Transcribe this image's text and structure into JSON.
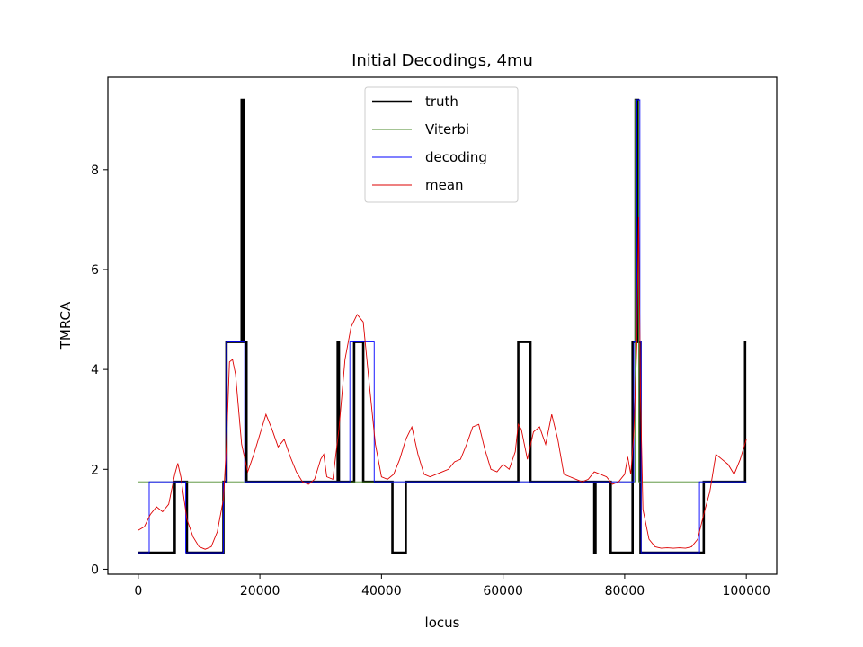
{
  "chart_data": {
    "type": "line",
    "title": "Initial Decodings, 4mu",
    "xlabel": "locus",
    "ylabel": "TMRCA",
    "xlim": [
      -5000,
      105000
    ],
    "ylim": [
      -0.1,
      9.85
    ],
    "xticks": [
      0,
      20000,
      40000,
      60000,
      80000,
      100000
    ],
    "yticks": [
      0,
      2,
      4,
      6,
      8
    ],
    "xtick_labels": [
      "0",
      "20000",
      "40000",
      "60000",
      "80000",
      "100000"
    ],
    "ytick_labels": [
      "0",
      "2",
      "4",
      "6",
      "8"
    ],
    "grid": false,
    "legend": {
      "position": "top-center"
    },
    "series": [
      {
        "name": "truth",
        "color": "#000000",
        "style": "step",
        "width": "thick",
        "x": [
          0,
          6000,
          6000,
          8000,
          8000,
          14000,
          14000,
          14500,
          14500,
          17000,
          17000,
          17300,
          17300,
          17800,
          17800,
          32800,
          32800,
          33000,
          33000,
          35500,
          35500,
          37000,
          37000,
          41800,
          41800,
          44000,
          44000,
          62500,
          62500,
          64500,
          64500,
          75000,
          75000,
          75200,
          75200,
          77700,
          77700,
          81300,
          81300,
          81800,
          81800,
          82200,
          82200,
          82600,
          82600,
          93000,
          93000,
          99800,
          99800,
          100000
        ],
        "y": [
          0.33,
          0.33,
          1.75,
          1.75,
          0.33,
          0.33,
          1.75,
          1.75,
          4.55,
          4.55,
          9.4,
          9.4,
          4.55,
          4.55,
          1.75,
          1.75,
          4.55,
          4.55,
          1.75,
          1.75,
          4.55,
          4.55,
          1.75,
          1.75,
          0.33,
          0.33,
          1.75,
          1.75,
          4.55,
          4.55,
          1.75,
          1.75,
          0.33,
          0.33,
          1.75,
          1.75,
          0.33,
          0.33,
          4.55,
          4.55,
          9.4,
          9.4,
          4.55,
          4.55,
          0.33,
          0.33,
          1.75,
          1.75,
          4.55,
          4.55
        ]
      },
      {
        "name": "Viterbi",
        "color": "#4a8a2a",
        "style": "line",
        "width": "thin",
        "x": [
          0,
          81700,
          81700,
          82300,
          82300,
          100000
        ],
        "y": [
          1.75,
          1.75,
          9.4,
          9.4,
          1.75,
          1.75
        ]
      },
      {
        "name": "decoding",
        "color": "#0000ff",
        "style": "step",
        "width": "thin",
        "x": [
          0,
          1800,
          1800,
          7800,
          7800,
          14000,
          14000,
          14500,
          14500,
          17500,
          17500,
          34800,
          34800,
          38800,
          38800,
          81500,
          81500,
          82000,
          82000,
          82500,
          82500,
          82700,
          82700,
          92300,
          92300,
          100000
        ],
        "y": [
          0.33,
          0.33,
          1.75,
          1.75,
          0.33,
          0.33,
          1.75,
          1.75,
          4.55,
          4.55,
          1.75,
          1.75,
          4.55,
          4.55,
          1.75,
          1.75,
          4.55,
          4.55,
          9.4,
          9.4,
          4.55,
          4.55,
          0.33,
          0.33,
          1.75,
          1.75
        ]
      },
      {
        "name": "mean",
        "color": "#dd0000",
        "style": "line",
        "width": "thin",
        "x": [
          0,
          1000,
          2000,
          3000,
          4000,
          5000,
          6000,
          6500,
          7000,
          8000,
          9000,
          10000,
          11000,
          12000,
          13000,
          14000,
          14500,
          15000,
          15500,
          16000,
          16500,
          17000,
          18000,
          19000,
          20000,
          21000,
          22000,
          23000,
          24000,
          25000,
          26000,
          27000,
          28000,
          29000,
          30000,
          30500,
          31000,
          32000,
          33000,
          34000,
          35000,
          36000,
          37000,
          38000,
          39000,
          40000,
          41000,
          42000,
          43000,
          44000,
          45000,
          46000,
          47000,
          48000,
          49000,
          50000,
          51000,
          52000,
          53000,
          54000,
          55000,
          56000,
          57000,
          58000,
          59000,
          60000,
          61000,
          62000,
          62500,
          63000,
          63500,
          64000,
          65000,
          66000,
          67000,
          68000,
          69000,
          70000,
          71000,
          72000,
          73000,
          74000,
          75000,
          76000,
          77000,
          78000,
          79000,
          80000,
          80500,
          81000,
          81500,
          82000,
          82300,
          82600,
          83000,
          84000,
          85000,
          86000,
          87000,
          88000,
          89000,
          90000,
          91000,
          92000,
          93000,
          94000,
          95000,
          96000,
          97000,
          98000,
          99000,
          100000
        ],
        "y": [
          0.78,
          0.85,
          1.1,
          1.25,
          1.15,
          1.3,
          1.9,
          2.12,
          1.85,
          1.0,
          0.65,
          0.45,
          0.4,
          0.45,
          0.75,
          1.4,
          2.5,
          4.15,
          4.2,
          3.9,
          3.2,
          2.5,
          1.95,
          2.3,
          2.7,
          3.1,
          2.8,
          2.45,
          2.6,
          2.25,
          1.95,
          1.75,
          1.7,
          1.8,
          2.2,
          2.3,
          1.85,
          1.8,
          2.8,
          4.2,
          4.85,
          5.1,
          4.95,
          3.7,
          2.5,
          1.85,
          1.8,
          1.9,
          2.2,
          2.6,
          2.85,
          2.3,
          1.9,
          1.85,
          1.9,
          1.95,
          2.0,
          2.15,
          2.2,
          2.5,
          2.85,
          2.9,
          2.4,
          2.0,
          1.95,
          2.1,
          2.0,
          2.35,
          2.9,
          2.8,
          2.5,
          2.2,
          2.75,
          2.85,
          2.5,
          3.1,
          2.6,
          1.9,
          1.85,
          1.8,
          1.75,
          1.8,
          1.95,
          1.9,
          1.85,
          1.7,
          1.75,
          1.9,
          2.25,
          1.9,
          2.7,
          4.5,
          7.05,
          3.5,
          1.2,
          0.6,
          0.45,
          0.42,
          0.43,
          0.42,
          0.43,
          0.42,
          0.45,
          0.6,
          1.1,
          1.55,
          2.3,
          2.2,
          2.1,
          1.9,
          2.2,
          2.6
        ]
      }
    ]
  }
}
